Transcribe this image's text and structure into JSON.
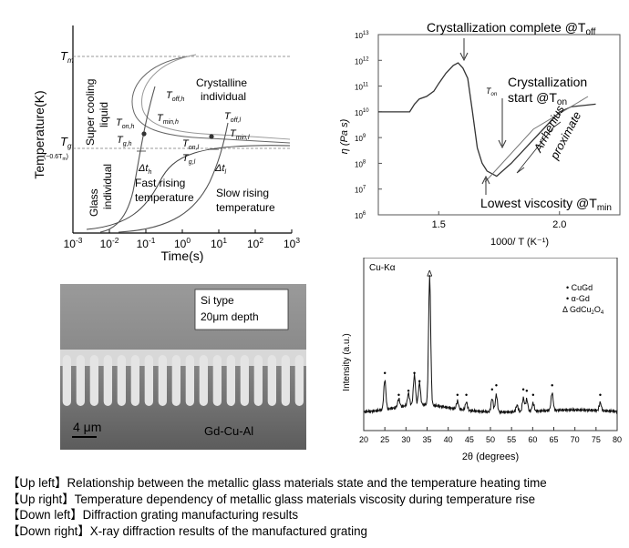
{
  "chart_data": [
    {
      "type": "line",
      "xlabel": "Time(s)",
      "ylabel": "Temperature(K)",
      "xscale": "log",
      "x_ticks": [
        "10^-3",
        "10^-2",
        "10^-1",
        "10^0",
        "10^1",
        "10^2",
        "10^3"
      ],
      "y_tick_labels": {
        "tm": "T",
        "tm_sub": "m",
        "tg": "T",
        "tg_sub": "g",
        "tg_note": "(~0.6T",
        "tg_note_sub": "m",
        "tg_note_end": ")"
      },
      "labels": {
        "super_cooling": "Super cooling",
        "liquid": "liquid",
        "crystalline": "Crystalline",
        "individual": "individual",
        "glass": "Glass",
        "glass_individual": "individual",
        "fast_rising": "Fast rising",
        "fast_temp": "temperature",
        "slow_rising": "Slow rising",
        "slow_temp": "temperature",
        "t_off_h": "T",
        "t_off_h_sub": "off,h",
        "t_on_h": "T",
        "t_on_h_sub": "on,h",
        "t_min_h": "T",
        "t_min_h_sub": "min,h",
        "t_g_h": "T",
        "t_g_h_sub": "g,h",
        "t_off_l": "T",
        "t_off_l_sub": "off,l",
        "t_min_l": "T",
        "t_min_l_sub": "min,l",
        "t_on_l": "T",
        "t_on_l_sub": "on,l",
        "t_g_l": "T",
        "t_g_l_sub": "g,l",
        "dt_h": "Δt",
        "dt_h_sub": "h",
        "dt_l": "Δt",
        "dt_l_sub": "l"
      }
    },
    {
      "type": "line",
      "xlabel": "1000/ T (K⁻¹)",
      "ylabel": "η (Pa s)",
      "xlim": [
        1.25,
        2.25
      ],
      "ylim_log10": [
        6,
        13
      ],
      "x_ticks": [
        1.5,
        2.0
      ],
      "y_ticks": [
        "10^6",
        "10^7",
        "10^8",
        "10^9",
        "10^10",
        "10^11",
        "10^12",
        "10^13"
      ],
      "series": [
        {
          "x": [
            1.25,
            1.28,
            1.33,
            1.38,
            1.4,
            1.42,
            1.45,
            1.48,
            1.5,
            1.53,
            1.56,
            1.58,
            1.6,
            1.62,
            1.64,
            1.66,
            1.68,
            1.7,
            1.74,
            1.8,
            1.88,
            1.95,
            2.0,
            2.05,
            2.15
          ],
          "log10_y": [
            10.0,
            10.0,
            10.0,
            10.0,
            10.3,
            10.5,
            10.6,
            10.8,
            11.1,
            11.5,
            11.8,
            11.9,
            11.7,
            11.3,
            10.0,
            8.6,
            8.0,
            7.7,
            7.5,
            8.0,
            8.8,
            9.5,
            10.0,
            10.2,
            10.3
          ]
        }
      ],
      "annotations": {
        "cryst_complete": "Crystallization complete @T",
        "cryst_complete_sub": "off",
        "cryst_start_1": "Crystallization",
        "cryst_start_2": "start @T",
        "cryst_start_sub": "on",
        "t_on": "T",
        "t_on_sub": "on",
        "arrhenius_1": "Arrhenius",
        "arrhenius_2": "proximate",
        "lowest": "Lowest viscosity @T",
        "lowest_sub": "min"
      }
    },
    {
      "type": "line",
      "title": "Cu-Kα",
      "xlabel": "2θ (degrees)",
      "ylabel": "Intensity (a.u.)",
      "xlim": [
        20,
        80
      ],
      "x_ticks": [
        20,
        25,
        30,
        35,
        40,
        45,
        50,
        55,
        60,
        65,
        70,
        75,
        80
      ],
      "legend": [
        {
          "marker": "•",
          "label": "CuGd"
        },
        {
          "marker": "•",
          "label": "α-Gd"
        },
        {
          "marker": "Δ",
          "label": "GdCu",
          "label_sub": "2",
          "label_mid": "O",
          "label_sub2": "4"
        }
      ],
      "peaks": [
        {
          "x": 25.0,
          "h": 0.22
        },
        {
          "x": 28.3,
          "h": 0.06
        },
        {
          "x": 30.6,
          "h": 0.09
        },
        {
          "x": 32.0,
          "h": 0.22
        },
        {
          "x": 33.2,
          "h": 0.16
        },
        {
          "x": 35.6,
          "h": 0.95
        },
        {
          "x": 42.2,
          "h": 0.06
        },
        {
          "x": 44.3,
          "h": 0.06
        },
        {
          "x": 50.4,
          "h": 0.1
        },
        {
          "x": 51.4,
          "h": 0.13
        },
        {
          "x": 56.3,
          "h": 0.05
        },
        {
          "x": 57.8,
          "h": 0.1
        },
        {
          "x": 58.6,
          "h": 0.09
        },
        {
          "x": 60.1,
          "h": 0.06
        },
        {
          "x": 64.6,
          "h": 0.13
        },
        {
          "x": 76.0,
          "h": 0.06
        }
      ]
    }
  ],
  "micrograph": {
    "note_line1": "Si type",
    "note_line2": "20μm depth",
    "scale": "4 μm",
    "material": "Gd-Cu-Al",
    "tooth_count": 18
  },
  "captions": [
    "【Up left】Relationship between the metallic glass materials state and the temperature heating time",
    "【Up right】Temperature dependency of metallic glass materials viscosity during temperature rise",
    "【Down left】Diffraction grating manufacturing results",
    "【Down right】X-ray diffraction results of the manufactured grating"
  ]
}
